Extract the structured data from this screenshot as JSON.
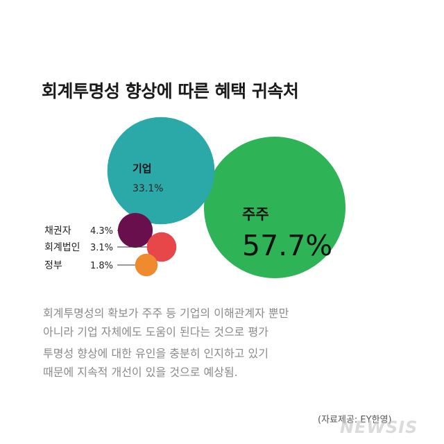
{
  "title": "회계투명성 향상에 따른 혜택 귀속처",
  "chart_data": {
    "type": "bubble",
    "title": "회계투명성 향상에 따른 혜택 귀속처",
    "unit": "%",
    "series": [
      {
        "name": "주주",
        "value": 57.7,
        "label": "57.7%",
        "color": "#2eb356"
      },
      {
        "name": "기업",
        "value": 33.1,
        "label": "33.1%",
        "color": "#2aa9a8"
      },
      {
        "name": "채권자",
        "value": 4.3,
        "label": "4.3%",
        "color": "#6a0f4e"
      },
      {
        "name": "회계법인",
        "value": 3.1,
        "label": "3.1%",
        "color": "#e8474a"
      },
      {
        "name": "정부",
        "value": 1.8,
        "label": "1.8%",
        "color": "#ef8a2e"
      }
    ]
  },
  "description": {
    "lines": [
      "회계투명성의 확보가 주주 등 기업의 이해관계자 뿐만",
      "아니라 기업 자체에도 도움이 된다는 것으로 평가",
      "투명성 향상에 대한 유인을 충분히 인지하고 있기",
      "때문에 지속적 개선이 있을 것으로 예상됨."
    ]
  },
  "source": "(자료제공: EY한영)",
  "watermark": "NEWSIS"
}
